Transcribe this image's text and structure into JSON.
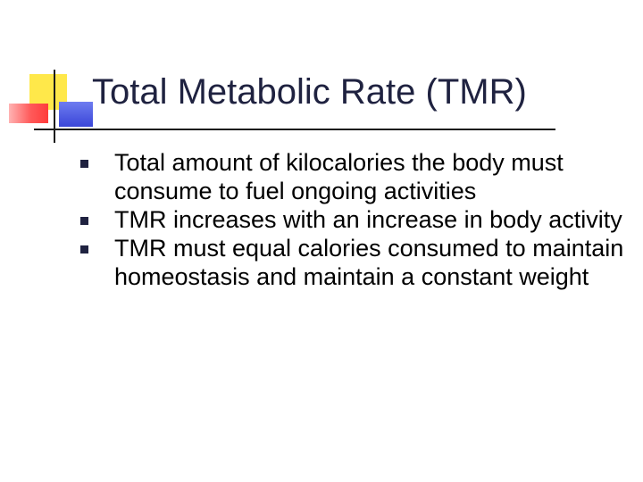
{
  "slide": {
    "title": "Total Metabolic Rate (TMR)",
    "bullets": [
      {
        "text": "Total amount of kilocalories the body must consume to fuel ongoing activities"
      },
      {
        "text": "TMR increases with an increase in body activity"
      },
      {
        "text": "TMR must equal calories consumed to maintain homeostasis and maintain a constant weight"
      }
    ]
  },
  "colors": {
    "title": "#1f2240",
    "bullet_marker": "#1f2240",
    "deco_yellow": "#ffe84a",
    "deco_red": "#ff3b3b",
    "deco_blue": "#3a46d8",
    "rule": "#1b1b1b"
  },
  "icons": {
    "bullet_marker": "square-bullet-icon"
  }
}
